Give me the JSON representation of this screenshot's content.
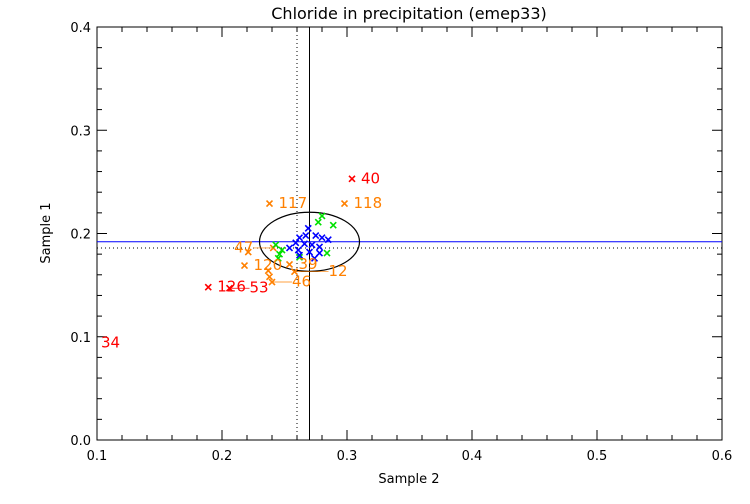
{
  "chart_data": {
    "type": "scatter",
    "title": "Chloride in precipitation (emep33)",
    "xlabel": "Sample 2",
    "ylabel": "Sample 1",
    "xlim": [
      0.1,
      0.6
    ],
    "ylim": [
      0.0,
      0.4
    ],
    "x_ticks": [
      "0.1",
      "0.2",
      "0.3",
      "0.4",
      "0.5",
      "0.6"
    ],
    "y_ticks": [
      "0.0",
      "0.1",
      "0.2",
      "0.3",
      "0.4"
    ],
    "grid": false,
    "reference_lines": {
      "horizontal_solid": {
        "y": 0.192,
        "color": "#0000ff"
      },
      "horizontal_dotted": {
        "y": 0.186,
        "color": "#000000"
      },
      "vertical_solid": {
        "x": 0.27,
        "color": "#000000"
      },
      "vertical_dotted": {
        "x": 0.26,
        "color": "#000000"
      }
    },
    "ellipse": {
      "cx": 0.27,
      "cy": 0.192,
      "rx": 0.04,
      "ry": 0.0286,
      "color": "#000000"
    },
    "series": [
      {
        "color": "#ff0000",
        "points": [
          {
            "x": 0.304,
            "y": 0.253,
            "label": "40"
          },
          {
            "x": 0.189,
            "y": 0.148,
            "label": "126"
          },
          {
            "x": 0.206,
            "y": 0.147,
            "label": "53"
          },
          {
            "x": 0.096,
            "y": 0.094,
            "label": "34"
          }
        ]
      },
      {
        "color": "#ff8000",
        "points": [
          {
            "x": 0.238,
            "y": 0.229,
            "label": "117"
          },
          {
            "x": 0.298,
            "y": 0.229,
            "label": "118"
          },
          {
            "x": 0.221,
            "y": 0.182,
            "label": ""
          },
          {
            "x": 0.218,
            "y": 0.169,
            "label": "120"
          },
          {
            "x": 0.237,
            "y": 0.164,
            "label": ""
          },
          {
            "x": 0.238,
            "y": 0.158,
            "label": ""
          },
          {
            "x": 0.24,
            "y": 0.153,
            "label": "46"
          },
          {
            "x": 0.254,
            "y": 0.17,
            "label": "39"
          },
          {
            "x": 0.258,
            "y": 0.163,
            "label": "12"
          },
          {
            "x": 0.241,
            "y": 0.186,
            "label": "47"
          }
        ]
      },
      {
        "color": "#00e000",
        "points": [
          {
            "x": 0.28,
            "y": 0.217
          },
          {
            "x": 0.277,
            "y": 0.211
          },
          {
            "x": 0.289,
            "y": 0.208
          },
          {
            "x": 0.284,
            "y": 0.181
          },
          {
            "x": 0.243,
            "y": 0.189
          },
          {
            "x": 0.246,
            "y": 0.18
          },
          {
            "x": 0.245,
            "y": 0.176
          },
          {
            "x": 0.262,
            "y": 0.177
          },
          {
            "x": 0.248,
            "y": 0.184
          }
        ]
      },
      {
        "color": "#0000ff",
        "points": [
          {
            "x": 0.269,
            "y": 0.205
          },
          {
            "x": 0.262,
            "y": 0.196
          },
          {
            "x": 0.275,
            "y": 0.198
          },
          {
            "x": 0.266,
            "y": 0.19
          },
          {
            "x": 0.272,
            "y": 0.189
          },
          {
            "x": 0.278,
            "y": 0.187
          },
          {
            "x": 0.254,
            "y": 0.186
          },
          {
            "x": 0.261,
            "y": 0.184
          },
          {
            "x": 0.27,
            "y": 0.182
          },
          {
            "x": 0.278,
            "y": 0.181
          },
          {
            "x": 0.262,
            "y": 0.179
          },
          {
            "x": 0.274,
            "y": 0.176
          },
          {
            "x": 0.28,
            "y": 0.196
          },
          {
            "x": 0.285,
            "y": 0.194
          },
          {
            "x": 0.267,
            "y": 0.198
          },
          {
            "x": 0.259,
            "y": 0.191
          }
        ]
      }
    ]
  }
}
